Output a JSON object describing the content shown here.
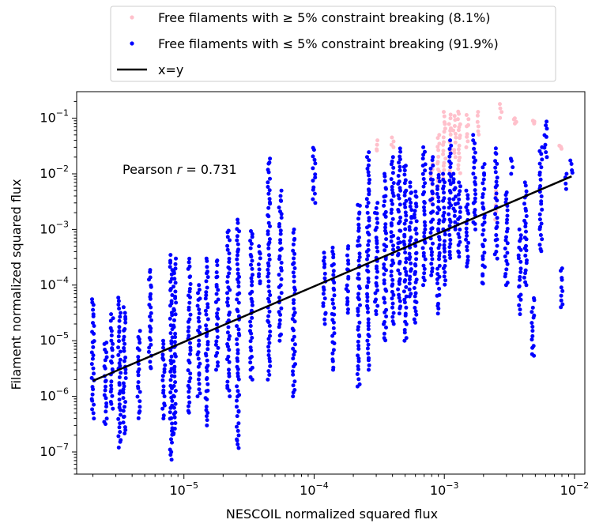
{
  "chart_data": {
    "type": "scatter",
    "xlabel": "NESCOIL normalized squared flux",
    "ylabel": "Filament normalized squared flux",
    "x_scale": "log",
    "y_scale": "log",
    "xlim": [
      1.5e-06,
      0.012
    ],
    "ylim": [
      4e-08,
      0.3
    ],
    "x_ticks": [
      {
        "value": 1e-05,
        "base": "10",
        "exp": "−5"
      },
      {
        "value": 0.0001,
        "base": "10",
        "exp": "−4"
      },
      {
        "value": 0.001,
        "base": "10",
        "exp": "−3"
      },
      {
        "value": 0.01,
        "base": "10",
        "exp": "−2"
      }
    ],
    "y_ticks": [
      {
        "value": 1e-07,
        "base": "10",
        "exp": "−7"
      },
      {
        "value": 1e-06,
        "base": "10",
        "exp": "−6"
      },
      {
        "value": 1e-05,
        "base": "10",
        "exp": "−5"
      },
      {
        "value": 0.0001,
        "base": "10",
        "exp": "−4"
      },
      {
        "value": 0.001,
        "base": "10",
        "exp": "−3"
      },
      {
        "value": 0.01,
        "base": "10",
        "exp": "−2"
      },
      {
        "value": 0.1,
        "base": "10",
        "exp": "−1"
      }
    ],
    "grid": false,
    "legend_position": "top-center, outside plot",
    "annotation": {
      "text_prefix": "Pearson ",
      "symbol": "r",
      "text_suffix": " = 0.731",
      "color": "#0000ff"
    },
    "series": [
      {
        "name": "Free filaments with ≥ 5% constraint breaking (8.1%)",
        "kind": "scatter",
        "color": "#ffc0cb",
        "columns": [
          {
            "x": 0.0008,
            "y_min": 0.003,
            "y_max": 0.015
          },
          {
            "x": 0.0009,
            "y_min": 0.006,
            "y_max": 0.05
          },
          {
            "x": 0.001,
            "y_min": 0.008,
            "y_max": 0.13
          },
          {
            "x": 0.0011,
            "y_min": 0.01,
            "y_max": 0.12
          },
          {
            "x": 0.0012,
            "y_min": 0.02,
            "y_max": 0.11
          },
          {
            "x": 0.0013,
            "y_min": 0.01,
            "y_max": 0.14
          },
          {
            "x": 0.0015,
            "y_min": 0.03,
            "y_max": 0.12
          },
          {
            "x": 0.0018,
            "y_min": 0.05,
            "y_max": 0.13
          },
          {
            "x": 0.0025,
            "y_min": 0.0015,
            "y_max": 0.005
          },
          {
            "x": 0.0027,
            "y_min": 0.1,
            "y_max": 0.18
          },
          {
            "x": 0.0035,
            "y_min": 0.08,
            "y_max": 0.1
          },
          {
            "x": 0.0048,
            "y_min": 0.08,
            "y_max": 0.09
          },
          {
            "x": 0.0078,
            "y_min": 0.028,
            "y_max": 0.032
          },
          {
            "x": 0.0003,
            "y_min": 0.025,
            "y_max": 0.04
          },
          {
            "x": 0.0004,
            "y_min": 0.03,
            "y_max": 0.045
          }
        ]
      },
      {
        "name": "Free filaments with ≤ 5% constraint breaking (91.9%)",
        "kind": "scatter",
        "color": "#0000ff",
        "columns": [
          {
            "x": 2e-06,
            "y_min": 4e-07,
            "y_max": 6e-05
          },
          {
            "x": 2.5e-06,
            "y_min": 3e-07,
            "y_max": 1e-05
          },
          {
            "x": 2.8e-06,
            "y_min": 6e-07,
            "y_max": 3e-05
          },
          {
            "x": 3.2e-06,
            "y_min": 1.2e-07,
            "y_max": 6e-05
          },
          {
            "x": 3.5e-06,
            "y_min": 2e-07,
            "y_max": 4e-05
          },
          {
            "x": 4.5e-06,
            "y_min": 4e-07,
            "y_max": 1.5e-05
          },
          {
            "x": 5.5e-06,
            "y_min": 3e-06,
            "y_max": 0.0002
          },
          {
            "x": 7e-06,
            "y_min": 4e-07,
            "y_max": 1e-05
          },
          {
            "x": 8e-06,
            "y_min": 7e-08,
            "y_max": 0.00035
          },
          {
            "x": 8.5e-06,
            "y_min": 2e-07,
            "y_max": 0.0003
          },
          {
            "x": 1.1e-05,
            "y_min": 5e-07,
            "y_max": 0.0003
          },
          {
            "x": 1.3e-05,
            "y_min": 1e-06,
            "y_max": 0.0001
          },
          {
            "x": 1.5e-05,
            "y_min": 3e-07,
            "y_max": 0.0003
          },
          {
            "x": 1.8e-05,
            "y_min": 3e-06,
            "y_max": 0.0003
          },
          {
            "x": 2.2e-05,
            "y_min": 1e-06,
            "y_max": 0.001
          },
          {
            "x": 2.6e-05,
            "y_min": 1.1e-07,
            "y_max": 0.0015
          },
          {
            "x": 3.3e-05,
            "y_min": 2e-06,
            "y_max": 0.001
          },
          {
            "x": 3.8e-05,
            "y_min": 0.0001,
            "y_max": 0.0005
          },
          {
            "x": 4.5e-05,
            "y_min": 2e-06,
            "y_max": 0.02
          },
          {
            "x": 5.5e-05,
            "y_min": 1e-05,
            "y_max": 0.005
          },
          {
            "x": 7e-05,
            "y_min": 1e-06,
            "y_max": 0.001
          },
          {
            "x": 0.0001,
            "y_min": 0.003,
            "y_max": 0.03
          },
          {
            "x": 0.00012,
            "y_min": 2e-05,
            "y_max": 0.0004
          },
          {
            "x": 0.00014,
            "y_min": 3e-06,
            "y_max": 0.0005
          },
          {
            "x": 0.00018,
            "y_min": 3e-05,
            "y_max": 0.0005
          },
          {
            "x": 0.00022,
            "y_min": 1.5e-06,
            "y_max": 0.003
          },
          {
            "x": 0.00026,
            "y_min": 3e-06,
            "y_max": 0.025
          },
          {
            "x": 0.0003,
            "y_min": 3e-05,
            "y_max": 0.003
          },
          {
            "x": 0.00035,
            "y_min": 1e-05,
            "y_max": 0.01
          },
          {
            "x": 0.0004,
            "y_min": 2e-05,
            "y_max": 0.02
          },
          {
            "x": 0.00045,
            "y_min": 3e-05,
            "y_max": 0.03
          },
          {
            "x": 0.0005,
            "y_min": 1e-05,
            "y_max": 0.015
          },
          {
            "x": 0.00055,
            "y_min": 6e-05,
            "y_max": 0.007
          },
          {
            "x": 0.0006,
            "y_min": 2e-05,
            "y_max": 0.005
          },
          {
            "x": 0.0007,
            "y_min": 0.0001,
            "y_max": 0.03
          },
          {
            "x": 0.0008,
            "y_min": 0.00015,
            "y_max": 0.02
          },
          {
            "x": 0.0009,
            "y_min": 3e-05,
            "y_max": 0.01
          },
          {
            "x": 0.001,
            "y_min": 0.0001,
            "y_max": 0.01
          },
          {
            "x": 0.0011,
            "y_min": 0.0003,
            "y_max": 0.04
          },
          {
            "x": 0.0012,
            "y_min": 0.001,
            "y_max": 0.01
          },
          {
            "x": 0.0013,
            "y_min": 0.0003,
            "y_max": 0.007
          },
          {
            "x": 0.0015,
            "y_min": 0.0002,
            "y_max": 0.005
          },
          {
            "x": 0.0017,
            "y_min": 0.001,
            "y_max": 0.05
          },
          {
            "x": 0.002,
            "y_min": 0.0001,
            "y_max": 0.015
          },
          {
            "x": 0.0025,
            "y_min": 0.0003,
            "y_max": 0.03
          },
          {
            "x": 0.003,
            "y_min": 0.0001,
            "y_max": 0.005
          },
          {
            "x": 0.0033,
            "y_min": 0.01,
            "y_max": 0.02
          },
          {
            "x": 0.0038,
            "y_min": 3e-05,
            "y_max": 0.001
          },
          {
            "x": 0.0042,
            "y_min": 0.0001,
            "y_max": 0.007
          },
          {
            "x": 0.0048,
            "y_min": 5e-06,
            "y_max": 6e-05
          },
          {
            "x": 0.0055,
            "y_min": 0.0004,
            "y_max": 0.03
          },
          {
            "x": 0.006,
            "y_min": 0.02,
            "y_max": 0.09
          },
          {
            "x": 0.008,
            "y_min": 4e-05,
            "y_max": 0.0002
          },
          {
            "x": 0.0085,
            "y_min": 0.005,
            "y_max": 0.01
          },
          {
            "x": 0.0095,
            "y_min": 0.01,
            "y_max": 0.018
          }
        ]
      },
      {
        "name": "x=y",
        "kind": "line",
        "color": "#000000",
        "x": [
          2e-06,
          0.0095
        ],
        "y": [
          1.9e-06,
          0.009
        ]
      }
    ]
  }
}
